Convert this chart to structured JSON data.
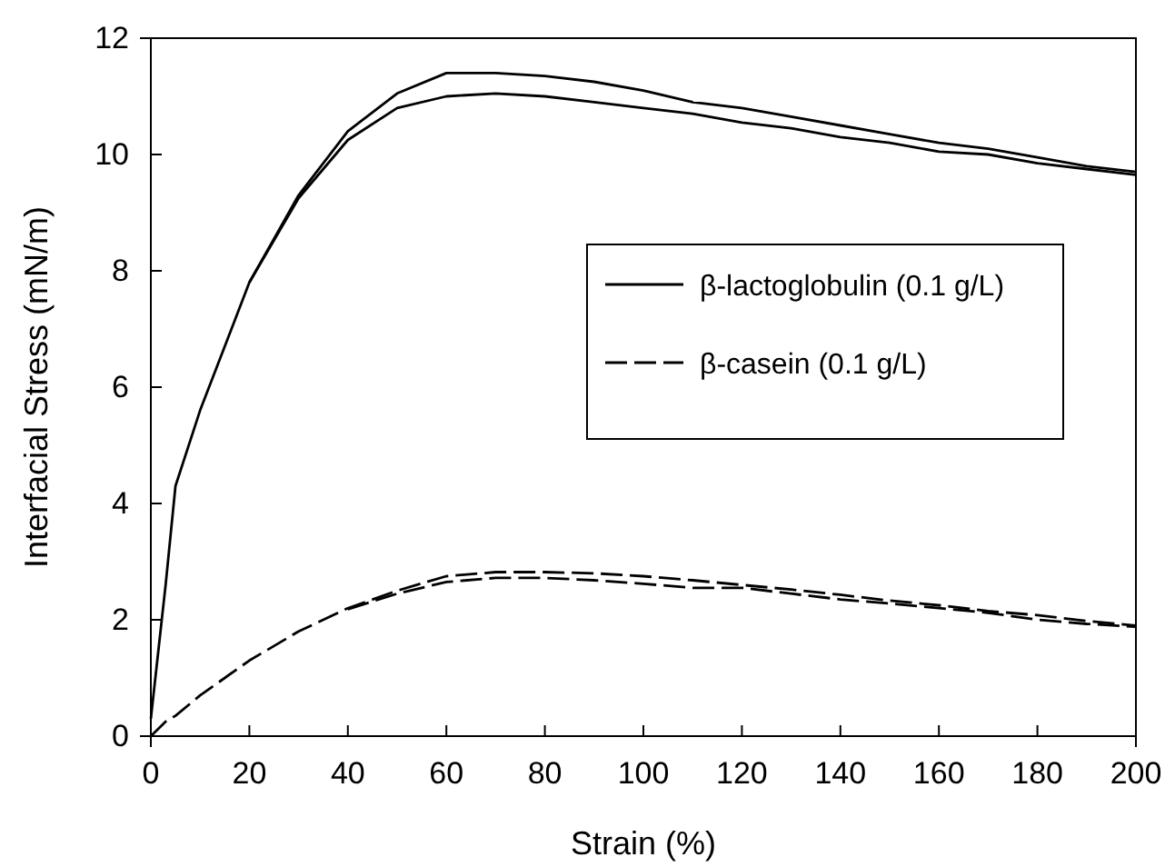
{
  "chart_data": {
    "type": "line",
    "xlabel": "Strain (%)",
    "ylabel": "Interfacial Stress (mN/m)",
    "xlim": [
      0,
      200
    ],
    "ylim": [
      0,
      12
    ],
    "xticks": [
      0,
      20,
      40,
      60,
      80,
      100,
      120,
      140,
      160,
      180,
      200
    ],
    "yticks": [
      0,
      2,
      4,
      6,
      8,
      10,
      12
    ],
    "grid": false,
    "legend": "right",
    "marker": "none",
    "x": [
      0,
      3,
      5,
      10,
      15,
      20,
      30,
      40,
      50,
      60,
      70,
      80,
      90,
      100,
      110,
      120,
      130,
      140,
      150,
      160,
      170,
      180,
      190,
      200
    ],
    "series": [
      {
        "name": "β-lactoglobulin (0.1 g/L)",
        "color": "#000000",
        "line_style": "solid",
        "values": [
          0.3,
          2.6,
          4.3,
          5.6,
          6.7,
          7.8,
          9.3,
          10.4,
          11.05,
          11.4,
          11.4,
          11.35,
          11.25,
          11.1,
          10.9,
          10.8,
          10.65,
          10.5,
          10.35,
          10.2,
          10.1,
          9.95,
          9.8,
          9.7
        ]
      },
      {
        "color": "#000000",
        "line_style": "solid",
        "values": [
          null,
          null,
          null,
          null,
          null,
          7.8,
          9.25,
          10.25,
          10.8,
          11.0,
          11.05,
          11.0,
          10.9,
          10.8,
          10.7,
          10.55,
          10.45,
          10.3,
          10.2,
          10.05,
          10.0,
          9.85,
          9.75,
          9.65
        ]
      },
      {
        "name": "β-casein (0.1 g/L)",
        "color": "#000000",
        "line_style": "dashed",
        "values": [
          0,
          0.25,
          0.35,
          0.7,
          1.0,
          1.3,
          1.8,
          2.2,
          2.5,
          2.75,
          2.82,
          2.82,
          2.8,
          2.75,
          2.68,
          2.6,
          2.52,
          2.43,
          2.33,
          2.25,
          2.15,
          2.08,
          1.98,
          1.9
        ]
      },
      {
        "color": "#000000",
        "line_style": "dashed",
        "values": [
          null,
          null,
          null,
          null,
          null,
          null,
          null,
          2.18,
          2.45,
          2.65,
          2.72,
          2.72,
          2.68,
          2.62,
          2.55,
          2.55,
          2.45,
          2.35,
          2.28,
          2.2,
          2.12,
          2.0,
          1.93,
          1.88
        ]
      }
    ]
  }
}
